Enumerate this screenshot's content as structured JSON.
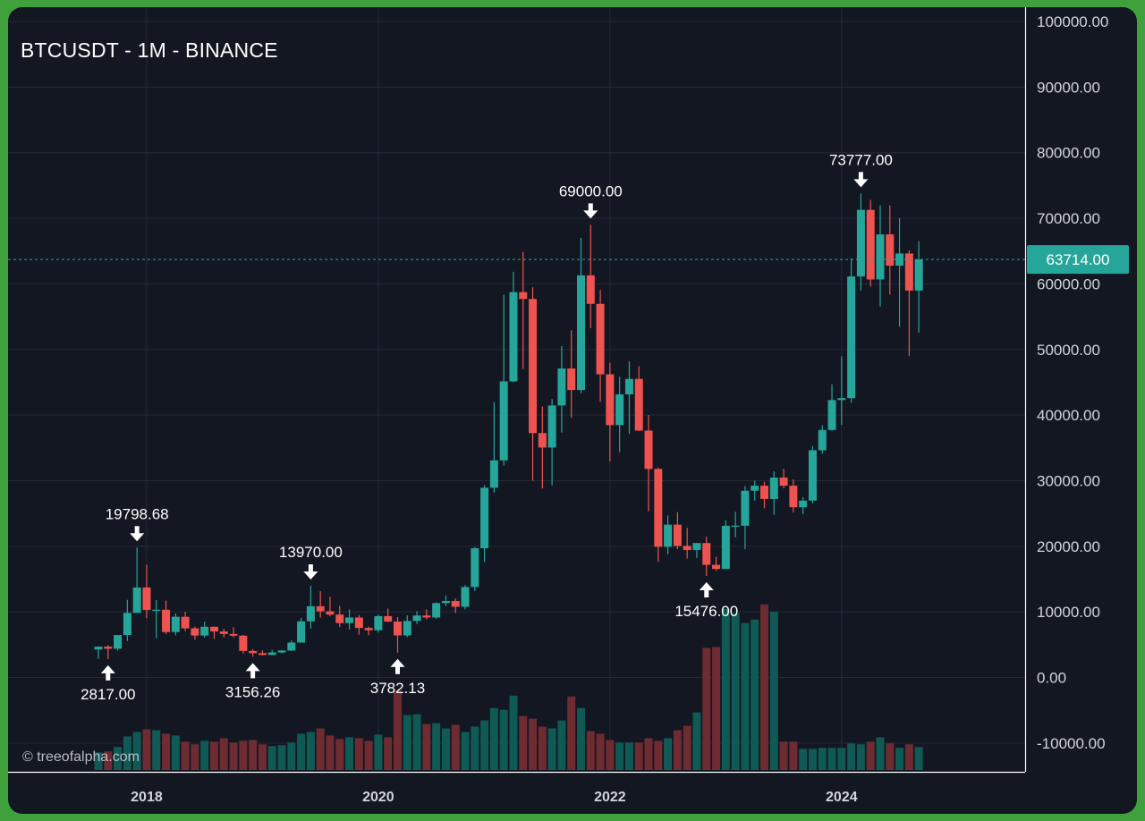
{
  "header": {
    "title": "BTCUSDT - 1M - BINANCE"
  },
  "watermark": "© treeofalpha.com",
  "current_price_label": "63714.00",
  "colors": {
    "up": "#26a69a",
    "down": "#ef5350",
    "vol_up": "#0f5a55",
    "vol_down": "#6e2b31",
    "grid": "#262a36",
    "bg": "#131722",
    "price_line": "#26a69a"
  },
  "chart_data": {
    "type": "candlestick",
    "title": "BTCUSDT - 1M - BINANCE",
    "ylim": [
      -13000,
      101000
    ],
    "y_ticks": [
      "100000.00",
      "90000.00",
      "80000.00",
      "70000.00",
      "60000.00",
      "50000.00",
      "40000.00",
      "30000.00",
      "20000.00",
      "10000.00",
      "0.00",
      "-10000.00"
    ],
    "x_ticks": [
      "2018",
      "2020",
      "2022",
      "2024"
    ],
    "current_price": 63714,
    "annotations": [
      {
        "label": "2817.00",
        "date": "2017-09",
        "value": 2817,
        "type": "low"
      },
      {
        "label": "19798.68",
        "date": "2017-12",
        "value": 19798.68,
        "type": "high"
      },
      {
        "label": "3156.26",
        "date": "2018-12",
        "value": 3156.26,
        "type": "low"
      },
      {
        "label": "13970.00",
        "date": "2019-06",
        "value": 13970,
        "type": "high"
      },
      {
        "label": "3782.13",
        "date": "2020-03",
        "value": 3782.13,
        "type": "low"
      },
      {
        "label": "69000.00",
        "date": "2021-11",
        "value": 69000,
        "type": "high"
      },
      {
        "label": "15476.00",
        "date": "2022-11",
        "value": 15476,
        "type": "low"
      },
      {
        "label": "73777.00",
        "date": "2024-03",
        "value": 73777,
        "type": "high"
      }
    ],
    "dates": [
      "2017-08",
      "2017-09",
      "2017-10",
      "2017-11",
      "2017-12",
      "2018-01",
      "2018-02",
      "2018-03",
      "2018-04",
      "2018-05",
      "2018-06",
      "2018-07",
      "2018-08",
      "2018-09",
      "2018-10",
      "2018-11",
      "2018-12",
      "2019-01",
      "2019-02",
      "2019-03",
      "2019-04",
      "2019-05",
      "2019-06",
      "2019-07",
      "2019-08",
      "2019-09",
      "2019-10",
      "2019-11",
      "2019-12",
      "2020-01",
      "2020-02",
      "2020-03",
      "2020-04",
      "2020-05",
      "2020-06",
      "2020-07",
      "2020-08",
      "2020-09",
      "2020-10",
      "2020-11",
      "2020-12",
      "2021-01",
      "2021-02",
      "2021-03",
      "2021-04",
      "2021-05",
      "2021-06",
      "2021-07",
      "2021-08",
      "2021-09",
      "2021-10",
      "2021-11",
      "2021-12",
      "2022-01",
      "2022-02",
      "2022-03",
      "2022-04",
      "2022-05",
      "2022-06",
      "2022-07",
      "2022-08",
      "2022-09",
      "2022-10",
      "2022-11",
      "2022-12",
      "2023-01",
      "2023-02",
      "2023-03",
      "2023-04",
      "2023-05",
      "2023-06",
      "2023-07",
      "2023-08",
      "2023-09",
      "2023-10",
      "2023-11",
      "2023-12",
      "2024-01",
      "2024-02",
      "2024-03",
      "2024-04",
      "2024-05",
      "2024-06",
      "2024-07",
      "2024-08",
      "2024-09"
    ],
    "series": [
      {
        "name": "open",
        "values": [
          4261,
          4689,
          4378,
          6463,
          9837,
          13716,
          10285,
          10323,
          6928,
          9246,
          7485,
          6391,
          7730,
          7011,
          6626,
          6369,
          4041,
          3702,
          3434,
          3813,
          4102,
          5320,
          8555,
          10854,
          10080,
          9588,
          8289,
          9140,
          7541,
          7195,
          9352,
          8523,
          6412,
          8620,
          9448,
          9138,
          11335,
          11649,
          10776,
          13791,
          19695,
          28923,
          33092,
          45136,
          58739,
          57697,
          37254,
          35046,
          41462,
          47100,
          43820,
          61300,
          56950,
          46217,
          38467,
          43160,
          45510,
          37630,
          31789,
          19922,
          23293,
          20048,
          19423,
          20490,
          17164,
          16542,
          23125,
          23141,
          28465,
          29233,
          27210,
          30472,
          29232,
          25940,
          26962,
          34639,
          37724,
          42284,
          42580,
          61130,
          71280,
          60672,
          67540,
          62772,
          64628,
          58974
        ]
      },
      {
        "name": "high",
        "values": [
          4745,
          4939,
          6470,
          11825,
          19798.68,
          17176,
          11786,
          11710,
          9759,
          10020,
          7760,
          8507,
          7760,
          7410,
          7680,
          6515,
          4310,
          4143,
          4210,
          4140,
          5632,
          9074,
          13970,
          13147,
          12325,
          10905,
          10370,
          9505,
          7750,
          9575,
          10500,
          9188,
          9460,
          10080,
          10380,
          11444,
          12468,
          12050,
          14100,
          19863,
          29300,
          41950,
          58352,
          61844,
          64854,
          59500,
          41330,
          42448,
          50500,
          52920,
          67000,
          69000,
          59053,
          47990,
          45821,
          48190,
          47444,
          40023,
          31982,
          24668,
          25212,
          22800,
          20475,
          21446,
          18387,
          23960,
          25250,
          29190,
          30000,
          29820,
          31431,
          31804,
          30190,
          27488,
          35280,
          38450,
          44700,
          48970,
          63913,
          73777,
          72797,
          71979,
          71949,
          70000,
          65100,
          66500
        ]
      },
      {
        "name": "low",
        "values": [
          2817,
          2817,
          4110,
          5555,
          10400,
          9035,
          6000,
          6600,
          6425,
          7034,
          5750,
          6070,
          5880,
          6100,
          6100,
          3652,
          3156.26,
          3349,
          3400,
          3670,
          4050,
          5320,
          7470,
          9100,
          9320,
          7710,
          7300,
          6515,
          6430,
          6850,
          8410,
          3782.13,
          6150,
          8150,
          8830,
          8940,
          10880,
          9820,
          10370,
          13200,
          17570,
          28200,
          32300,
          45000,
          47000,
          30000,
          28805,
          29278,
          37332,
          39600,
          43300,
          53256,
          42000,
          32917,
          34350,
          37155,
          37578,
          25338,
          17622,
          18782,
          19550,
          18125,
          18190,
          15476,
          16256,
          16499,
          21351,
          19549,
          26942,
          25811,
          24800,
          28861,
          25166,
          24901,
          26538,
          34098,
          37600,
          38500,
          41885,
          59005,
          59600,
          56552,
          58400,
          53485,
          49000,
          52550
        ]
      },
      {
        "name": "close",
        "values": [
          4689,
          4378,
          6463,
          9837,
          13716,
          10285,
          10323,
          6928,
          9246,
          7485,
          6391,
          7730,
          7011,
          6626,
          6369,
          4041,
          3702,
          3434,
          3813,
          4102,
          5320,
          8555,
          10854,
          10080,
          9588,
          8289,
          9140,
          7541,
          7195,
          9352,
          8523,
          6412,
          8620,
          9448,
          9138,
          11335,
          11649,
          10776,
          13791,
          19695,
          28923,
          33092,
          45136,
          58739,
          57697,
          37254,
          35046,
          41462,
          47100,
          43820,
          61300,
          56950,
          46217,
          38467,
          43160,
          45510,
          37630,
          31789,
          19922,
          23293,
          20048,
          19423,
          20490,
          17164,
          16542,
          23125,
          23141,
          28465,
          29233,
          27210,
          30472,
          29232,
          25940,
          26962,
          34639,
          37724,
          42284,
          42580,
          61130,
          71280,
          60672,
          67540,
          62772,
          64628,
          58974,
          63714
        ]
      },
      {
        "name": "volume",
        "values": [
          2.0,
          2.1,
          2.6,
          3.8,
          4.3,
          4.6,
          4.5,
          4.1,
          3.9,
          3.2,
          2.9,
          3.3,
          3.2,
          3.6,
          3.1,
          3.3,
          3.4,
          2.9,
          2.7,
          2.8,
          3.1,
          4.1,
          4.3,
          4.7,
          3.9,
          3.5,
          3.7,
          3.6,
          3.3,
          4.0,
          3.7,
          9.0,
          6.2,
          6.3,
          5.2,
          5.3,
          4.7,
          5.1,
          4.3,
          4.9,
          5.6,
          7.0,
          6.8,
          8.4,
          6.1,
          5.8,
          4.9,
          4.7,
          5.6,
          8.3,
          7.0,
          4.4,
          4.1,
          3.4,
          3.1,
          3.1,
          3.1,
          3.6,
          3.3,
          3.6,
          4.5,
          5.0,
          6.5,
          13.8,
          13.9,
          18.2,
          17.7,
          16.6,
          17.0,
          18.7,
          17.9,
          3.2,
          3.2,
          2.4,
          2.4,
          2.5,
          2.5,
          2.5,
          3.0,
          2.9,
          3.2,
          3.7,
          3.0,
          2.5,
          2.9,
          2.6
        ]
      }
    ]
  }
}
